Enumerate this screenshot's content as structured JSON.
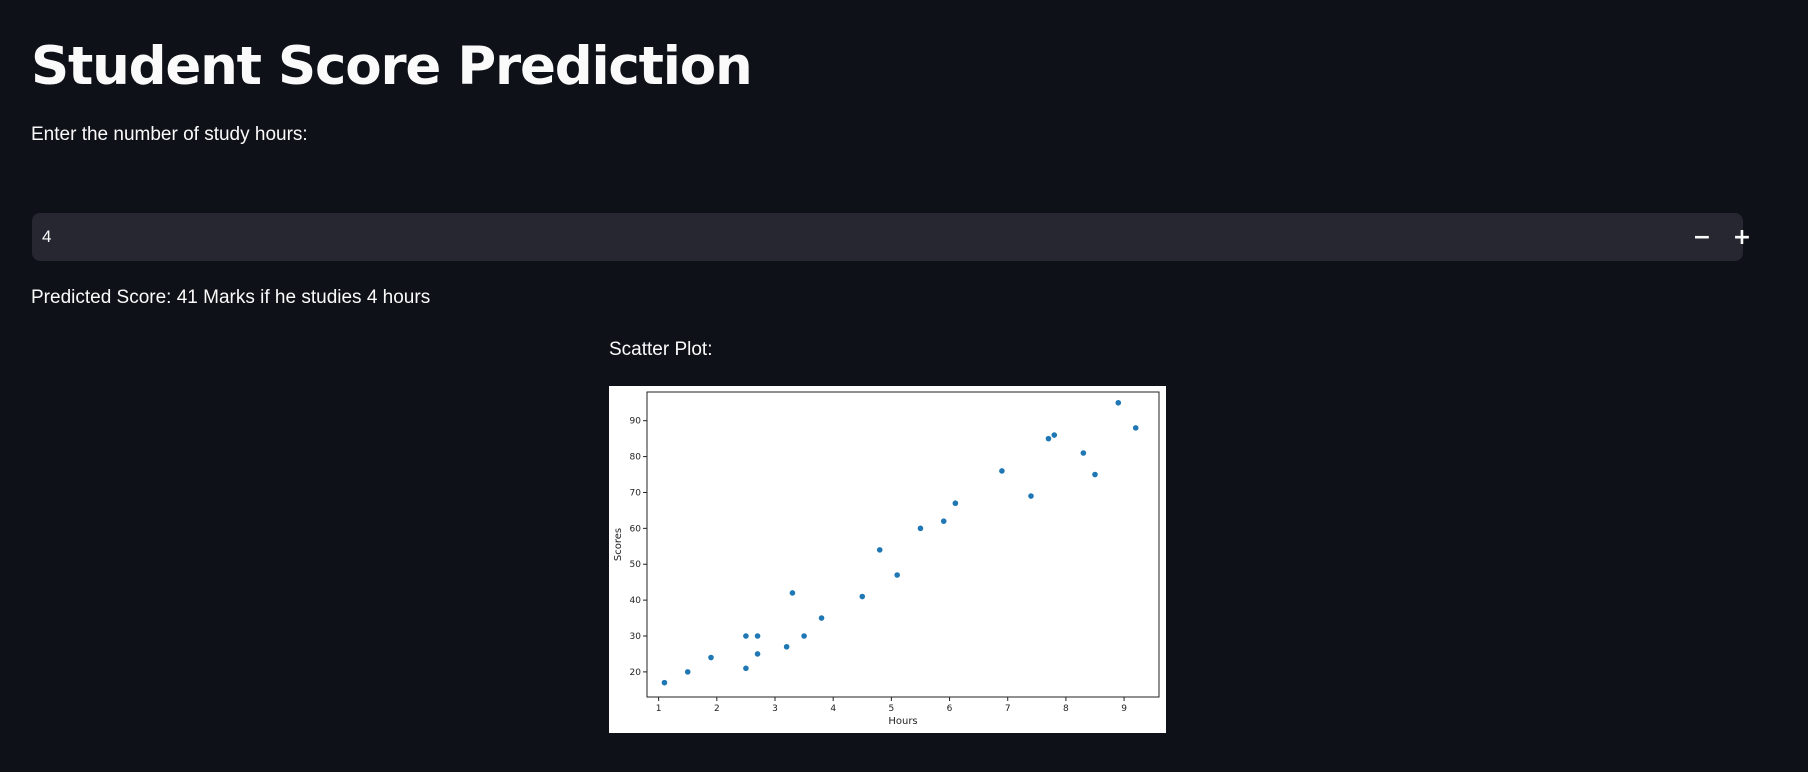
{
  "page": {
    "title": "Student Score Prediction",
    "input_label": "Enter the number of study hours:",
    "result_text": "Predicted Score: 41 Marks if he studies 4 hours",
    "plot_label": "Scatter Plot:"
  },
  "hours_input": {
    "value": "4",
    "decrement_label": "−",
    "increment_label": "+"
  },
  "colors": {
    "background": "#0e1117",
    "input_background": "#262730",
    "text": "#fafafa",
    "point": "#1f77b4"
  },
  "chart_data": {
    "type": "scatter",
    "title": "",
    "xlabel": "Hours",
    "ylabel": "Scores",
    "xlim": [
      0.8,
      9.6
    ],
    "ylim": [
      13,
      98
    ],
    "xticks": [
      1,
      2,
      3,
      4,
      5,
      6,
      7,
      8,
      9
    ],
    "yticks": [
      20,
      30,
      40,
      50,
      60,
      70,
      80,
      90
    ],
    "grid": false,
    "x": [
      1.1,
      1.5,
      1.9,
      2.5,
      2.5,
      2.7,
      2.7,
      3.2,
      3.3,
      3.5,
      3.8,
      4.5,
      4.8,
      5.1,
      5.5,
      5.9,
      6.1,
      6.9,
      7.4,
      7.7,
      7.8,
      8.3,
      8.5,
      8.9,
      9.2
    ],
    "y": [
      17,
      20,
      24,
      21,
      30,
      25,
      30,
      27,
      42,
      30,
      35,
      41,
      54,
      47,
      60,
      62,
      67,
      76,
      69,
      85,
      86,
      81,
      75,
      95,
      88
    ]
  }
}
